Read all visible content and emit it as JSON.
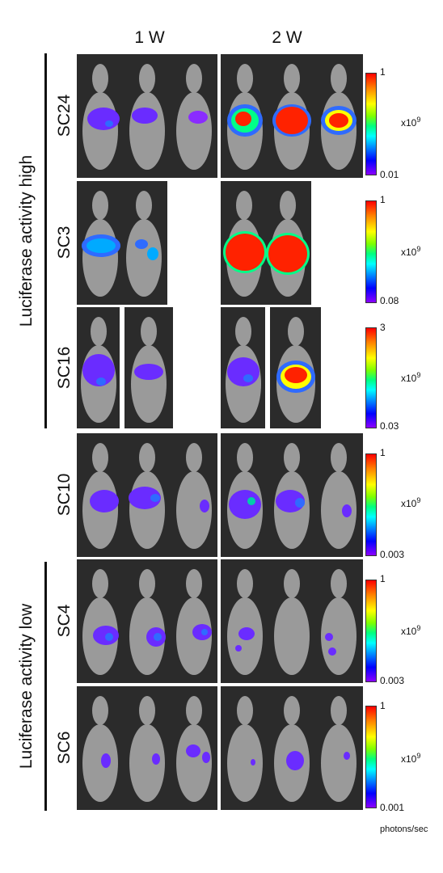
{
  "columns": [
    "1 W",
    "2 W"
  ],
  "groups": [
    {
      "label": "Luciferase activity high"
    },
    {
      "label": "Luciferase activity low"
    }
  ],
  "rows": [
    {
      "id": "SC24",
      "max": "1",
      "min": "0.01",
      "unit": "x10",
      "exp": "9"
    },
    {
      "id": "SC3",
      "max": "1",
      "min": "0.08",
      "unit": "x10",
      "exp": "9"
    },
    {
      "id": "SC16",
      "max": "3",
      "min": "0.03",
      "unit": "x10",
      "exp": "9"
    },
    {
      "id": "SC10",
      "max": "1",
      "min": "0.003",
      "unit": "x10",
      "exp": "9"
    },
    {
      "id": "SC4",
      "max": "1",
      "min": "0.003",
      "unit": "x10",
      "exp": "9"
    },
    {
      "id": "SC6",
      "max": "1",
      "min": "0.001",
      "unit": "x10",
      "exp": "9"
    }
  ],
  "footer": "photons/sec"
}
